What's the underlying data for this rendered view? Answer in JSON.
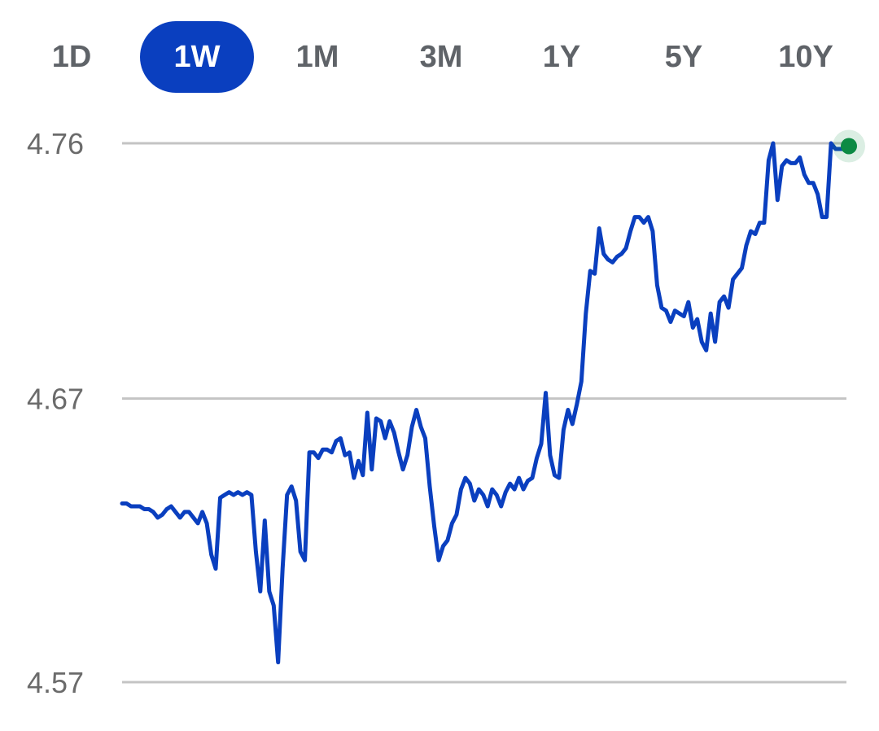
{
  "range_tabs": [
    {
      "label": "1D",
      "active": false
    },
    {
      "label": "1W",
      "active": true
    },
    {
      "label": "1M",
      "active": false
    },
    {
      "label": "3M",
      "active": false
    },
    {
      "label": "1Y",
      "active": false
    },
    {
      "label": "5Y",
      "active": false
    },
    {
      "label": "10Y",
      "active": false
    }
  ],
  "colors": {
    "accent": "#0a3fbf",
    "line": "#0a3fbf",
    "grid": "#c4c4c4",
    "latest_point": "#0b8a43"
  },
  "chart_data": {
    "type": "line",
    "title": "",
    "xlabel": "",
    "ylabel": "",
    "grid": true,
    "ylim": [
      4.57,
      4.76
    ],
    "yticks": [
      4.76,
      4.67,
      4.57
    ],
    "ytick_labels": [
      "4.76",
      "4.67",
      "4.57"
    ],
    "latest_point": true,
    "series": [
      {
        "values": [
          4.633,
          4.633,
          4.632,
          4.632,
          4.632,
          4.631,
          4.631,
          4.63,
          4.628,
          4.629,
          4.631,
          4.632,
          4.63,
          4.628,
          4.63,
          4.63,
          4.628,
          4.626,
          4.63,
          4.626,
          4.615,
          4.61,
          4.635,
          4.636,
          4.637,
          4.636,
          4.637,
          4.636,
          4.637,
          4.636,
          4.616,
          4.602,
          4.627,
          4.602,
          4.597,
          4.577,
          4.61,
          4.636,
          4.639,
          4.634,
          4.616,
          4.613,
          4.651,
          4.651,
          4.649,
          4.652,
          4.652,
          4.651,
          4.655,
          4.656,
          4.65,
          4.651,
          4.642,
          4.648,
          4.643,
          4.665,
          4.645,
          4.663,
          4.662,
          4.656,
          4.662,
          4.658,
          4.651,
          4.645,
          4.65,
          4.66,
          4.666,
          4.66,
          4.656,
          4.639,
          4.625,
          4.613,
          4.618,
          4.62,
          4.626,
          4.629,
          4.638,
          4.642,
          4.64,
          4.634,
          4.638,
          4.636,
          4.632,
          4.638,
          4.636,
          4.632,
          4.637,
          4.64,
          4.638,
          4.642,
          4.638,
          4.641,
          4.642,
          4.649,
          4.654,
          4.672,
          4.65,
          4.643,
          4.642,
          4.659,
          4.666,
          4.661,
          4.668,
          4.676,
          4.7,
          4.715,
          4.714,
          4.73,
          4.721,
          4.719,
          4.718,
          4.72,
          4.721,
          4.723,
          4.729,
          4.734,
          4.734,
          4.732,
          4.734,
          4.729,
          4.71,
          4.702,
          4.701,
          4.697,
          4.701,
          4.7,
          4.699,
          4.704,
          4.695,
          4.698,
          4.69,
          4.687,
          4.7,
          4.69,
          4.704,
          4.706,
          4.702,
          4.712,
          4.714,
          4.716,
          4.724,
          4.729,
          4.728,
          4.732,
          4.732,
          4.754,
          4.76,
          4.74,
          4.752,
          4.754,
          4.753,
          4.753,
          4.755,
          4.749,
          4.746,
          4.746,
          4.742,
          4.734,
          4.734,
          4.76,
          4.758,
          4.758,
          4.758,
          4.759
        ]
      }
    ]
  }
}
